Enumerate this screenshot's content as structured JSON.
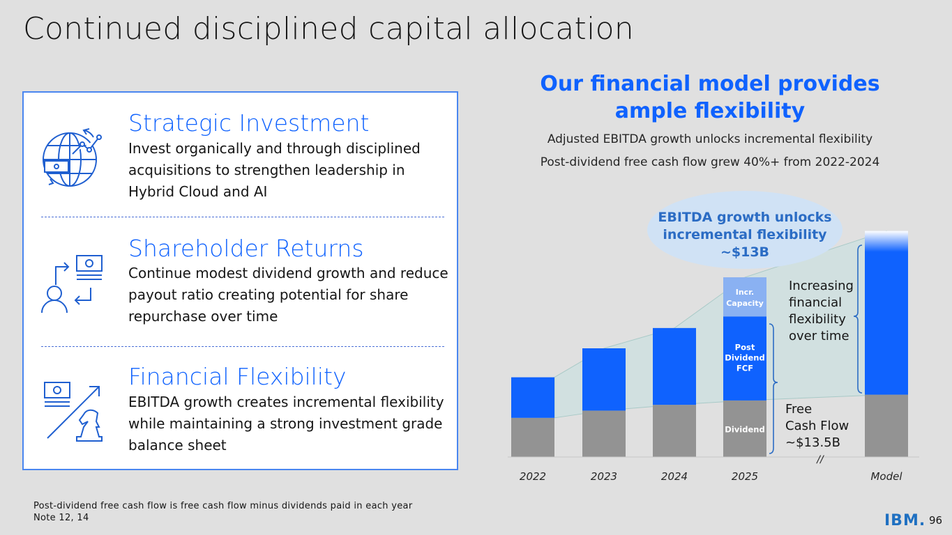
{
  "page": {
    "title": "Continued disciplined capital allocation",
    "page_number": "96",
    "logo_text": "IBM."
  },
  "panel": {
    "sections": [
      {
        "title": "Strategic Investment",
        "body": "Invest organically and through disciplined acquisitions to strengthen leadership in Hybrid Cloud and AI",
        "icon": "globe-investment-icon"
      },
      {
        "title": "Shareholder Returns",
        "body": "Continue modest dividend growth and reduce payout ratio creating potential for share repurchase over time",
        "icon": "shareholder-exchange-icon"
      },
      {
        "title": "Financial Flexibility",
        "body": "EBITDA growth creates incremental flexibility while maintaining a strong investment grade balance sheet",
        "icon": "chess-knight-growth-icon"
      }
    ]
  },
  "chart_header": {
    "heading_line1": "Our financial model provides",
    "heading_line2": "ample flexibility",
    "sub1": "Adjusted EBITDA growth unlocks incremental flexibility",
    "sub2": "Post-dividend free cash flow grew 40%+ from 2022-2024"
  },
  "footnotes": {
    "line1": "Post-dividend free cash flow is free cash flow minus dividends paid in each year",
    "line2": "Note 12, 14"
  },
  "colors": {
    "dividend": "#939393",
    "post_dividend_fcf": "#0f62fe",
    "incr_capacity": "#8ab1f2",
    "flex_area": "#cfe1e0",
    "heading_blue": "#0f62fe",
    "bubble": "#d0e2f5",
    "bubble_text": "#2b6cc4"
  },
  "chart_data": {
    "type": "bar",
    "stacked": true,
    "categories": [
      "2022",
      "2023",
      "2024",
      "2025",
      "",
      "Model"
    ],
    "series": [
      {
        "name": "Dividend",
        "values": [
          2.7,
          3.2,
          3.6,
          3.9,
          null,
          4.3
        ]
      },
      {
        "name": "Post Dividend FCF",
        "values": [
          2.8,
          4.3,
          5.3,
          5.8,
          null,
          11.3
        ]
      },
      {
        "name": "Incr. Capacity",
        "values": [
          0,
          0,
          0,
          2.7,
          null,
          0
        ]
      }
    ],
    "units": "relative (no value axis shown)",
    "segment_labels": {
      "dividend": "Dividend",
      "post_dividend": "Post\nDividend\nFCF",
      "incr": "Incr.\nCapacity"
    },
    "axis_break_label": "//",
    "annotations": {
      "bubble": "EBITDA growth unlocks\nincremental flexibility\n~$13B",
      "right_brace": "Increasing\nfinancial\nflexibility\nover time",
      "left_brace": "Free\nCash Flow\n~$13.5B"
    },
    "flex_area_shading": true,
    "grid": false,
    "legend": "none"
  }
}
